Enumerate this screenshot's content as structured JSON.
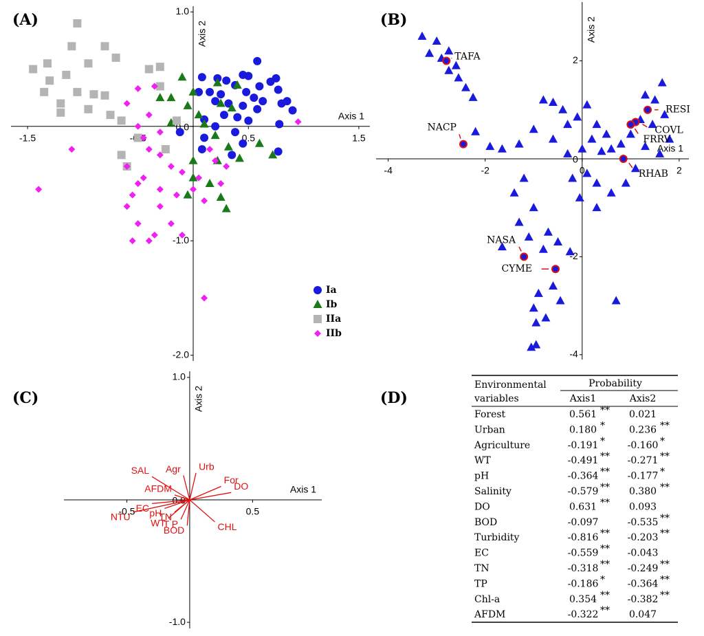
{
  "chart_data": [
    {
      "type": "scatter",
      "panel_label": "(A)",
      "xlabel": "Axis 1",
      "ylabel": "Axis 2",
      "xlim": [
        -1.65,
        1.6
      ],
      "ylim": [
        -2.05,
        1.05
      ],
      "xticks": [
        -1.5,
        -0.5,
        0.5,
        1.5
      ],
      "yticks": [
        {
          "value": 1,
          "label": "1.0"
        },
        {
          "value": 0,
          "label": "0.0"
        },
        {
          "value": -1,
          "label": "-1.0"
        },
        {
          "value": -2,
          "label": "-2.0"
        }
      ],
      "legend": "lower right",
      "series": [
        {
          "name": "Ia",
          "color": "#1a1adc",
          "marker": "circle",
          "x": [
            0.58,
            0.45,
            0.5,
            0.75,
            0.7,
            0.08,
            0.22,
            0.3,
            0.38,
            0.6,
            0.77,
            0.05,
            0.15,
            0.25,
            0.48,
            0.55,
            0.63,
            0.8,
            0.85,
            0.2,
            0.32,
            0.45,
            0.58,
            0.9,
            0.28,
            0.4,
            0.5,
            0.78,
            0.1,
            0.2,
            -0.12,
            0.38,
            0.1,
            0.45,
            0.08,
            0.35,
            0.77
          ],
          "y": [
            0.57,
            0.45,
            0.44,
            0.42,
            0.39,
            0.43,
            0.42,
            0.4,
            0.36,
            0.35,
            0.32,
            0.3,
            0.3,
            0.28,
            0.3,
            0.25,
            0.22,
            0.2,
            0.22,
            0.22,
            0.2,
            0.18,
            0.15,
            0.14,
            0.1,
            0.08,
            0.05,
            0.02,
            0.06,
            0,
            -0.05,
            -0.05,
            -0.1,
            -0.15,
            -0.2,
            -0.25,
            -0.22
          ]
        },
        {
          "name": "Ib",
          "color": "#1a7a1a",
          "marker": "triangle",
          "x": [
            -0.1,
            0.22,
            0.4,
            -0.2,
            0,
            -0.3,
            0.25,
            -0.05,
            0.35,
            0.05,
            -0.2,
            0.1,
            0.2,
            0.32,
            0.6,
            0.72,
            0,
            0.22,
            0.42,
            0,
            0.15,
            0.25,
            0.3,
            -0.05
          ],
          "y": [
            0.43,
            0.38,
            0.36,
            0.25,
            0.3,
            0.25,
            0.2,
            0.18,
            0.16,
            0.1,
            0.03,
            0.02,
            -0.08,
            -0.18,
            -0.15,
            -0.25,
            -0.3,
            -0.3,
            -0.28,
            -0.45,
            -0.5,
            -0.62,
            -0.72,
            -0.6
          ]
        },
        {
          "name": "IIa",
          "color": "#b4b4b4",
          "marker": "square",
          "x": [
            -1.05,
            -1.32,
            -1.1,
            -0.8,
            -1.45,
            -1.3,
            -0.95,
            -0.7,
            -1.15,
            -0.4,
            -0.3,
            -1.35,
            -1.05,
            -0.9,
            -0.8,
            -1.2,
            -0.95,
            -1.2,
            -0.75,
            -0.65,
            -0.3,
            -0.15,
            -0.5,
            -0.25,
            -0.65,
            -0.6
          ],
          "y": [
            0.9,
            0.55,
            0.7,
            0.7,
            0.5,
            0.4,
            0.55,
            0.6,
            0.45,
            0.5,
            0.52,
            0.3,
            0.3,
            0.28,
            0.27,
            0.2,
            0.15,
            0.12,
            0.1,
            0.05,
            0.35,
            0.05,
            -0.1,
            -0.2,
            -0.25,
            -0.35
          ]
        },
        {
          "name": "IIb",
          "color": "#f020f0",
          "marker": "diamond",
          "x": [
            0.95,
            -0.35,
            -0.5,
            -0.6,
            -0.4,
            -0.5,
            -0.45,
            -0.3,
            -1.1,
            -0.4,
            -0.3,
            -0.6,
            -0.2,
            -0.1,
            -0.45,
            0.05,
            0.2,
            0.3,
            -0.5,
            -0.3,
            0,
            -0.55,
            -0.15,
            0.1,
            -1.4,
            -0.6,
            -0.3,
            -0.5,
            -0.2,
            -0.35,
            -0.55,
            -0.4,
            -0.1,
            0.1,
            0.25,
            0.15
          ],
          "y": [
            0.04,
            0.35,
            0.33,
            0.2,
            0.1,
            0,
            -0.1,
            -0.05,
            -0.2,
            -0.2,
            -0.25,
            -0.35,
            -0.35,
            -0.4,
            -0.45,
            -0.45,
            -0.3,
            -0.35,
            -0.5,
            -0.55,
            -0.55,
            -0.6,
            -0.6,
            -0.65,
            -0.55,
            -0.7,
            -0.7,
            -0.85,
            -0.85,
            -0.95,
            -1,
            -1,
            -0.95,
            -1.5,
            -0.5,
            -0.2
          ]
        }
      ]
    },
    {
      "type": "scatter",
      "panel_label": "(B)",
      "xlabel": "Axis 1",
      "ylabel": "Axis 2",
      "xlim": [
        -4.25,
        2.2
      ],
      "ylim": [
        -4.1,
        3.2
      ],
      "xticks": [
        -4,
        -2,
        0,
        2
      ],
      "yticks": [
        2,
        0,
        -2,
        -4
      ],
      "series": [
        {
          "color": "#1a1adc",
          "marker": "triangle",
          "x": [
            -3.3,
            -3,
            -2.75,
            -3.15,
            -2.9,
            -2.6,
            -2.75,
            -2.55,
            -2.4,
            -2.25,
            -2.2,
            -1.9,
            -1.65,
            -1.3,
            -1,
            -0.8,
            -0.6,
            -0.4,
            -0.6,
            -0.3,
            -0.1,
            0.1,
            0.3,
            0.5,
            0.2,
            0,
            -0.3,
            0.4,
            0.6,
            0.8,
            1,
            1.2,
            1.5,
            1.65,
            1.3,
            1.45,
            1.7,
            1.8,
            1.6,
            1.3,
            1.1,
            0.9,
            0.6,
            0.3,
            0.1,
            -0.2,
            -0.05,
            0.3,
            -1.2,
            -1.4,
            -1,
            -1.3,
            -1.1,
            -0.7,
            -0.8,
            -0.5,
            -0.25,
            -0.6,
            -0.9,
            -0.45,
            -1,
            -0.95,
            -0.75,
            -1.05,
            -0.95,
            0.7,
            -1.65
          ],
          "y": [
            2.5,
            2.4,
            2.2,
            2.15,
            2.05,
            1.9,
            1.8,
            1.65,
            1.45,
            1.25,
            0.55,
            0.25,
            0.2,
            0.3,
            0.6,
            1.2,
            1.15,
            1,
            0.4,
            0.7,
            0.85,
            1.1,
            0.7,
            0.5,
            0.4,
            0.2,
            0.1,
            0.15,
            0.2,
            0.3,
            0.5,
            0.8,
            1.2,
            1.55,
            1.3,
            0.7,
            0.9,
            0.4,
            0.1,
            0.25,
            -0.2,
            -0.5,
            -0.7,
            -0.5,
            -0.3,
            -0.4,
            -0.8,
            -1,
            -0.4,
            -0.7,
            -1,
            -1.3,
            -1.6,
            -1.5,
            -1.85,
            -1.7,
            -1.9,
            -2.6,
            -2.75,
            -2.9,
            -3.05,
            -3.35,
            -3.25,
            -3.85,
            -3.8,
            -2.9,
            -1.8
          ]
        }
      ],
      "points": [
        {
          "label": "TAFA",
          "x": -2.8,
          "y": 2.0
        },
        {
          "label": "NACP",
          "x": -2.45,
          "y": 0.3
        },
        {
          "label": "RESI",
          "x": 1.35,
          "y": 1.0
        },
        {
          "label": "COVL",
          "x": 1.1,
          "y": 0.75
        },
        {
          "label": "FRRV",
          "x": 1.0,
          "y": 0.7
        },
        {
          "label": "RHAB",
          "x": 0.85,
          "y": 0.0
        },
        {
          "label": "NASA",
          "x": -1.2,
          "y": -2.0
        },
        {
          "label": "CYME",
          "x": -0.55,
          "y": -2.25
        }
      ]
    },
    {
      "type": "biplot",
      "panel_label": "(C)",
      "xlabel": "Axis 1",
      "ylabel": "Axis 2",
      "xlim": [
        -1.0,
        1.05
      ],
      "ylim": [
        -1.05,
        1.05
      ],
      "xticks": [
        -0.5,
        0.5
      ],
      "yticks": [
        {
          "value": 1,
          "label": "1.0"
        },
        {
          "value": 0,
          "label": "0.0"
        },
        {
          "value": -1,
          "label": "-1.0"
        }
      ],
      "color": "#e01010",
      "vectors": [
        {
          "label": "SAL",
          "x": -0.3,
          "y": 0.19
        },
        {
          "label": "Agr",
          "x": -0.05,
          "y": 0.2
        },
        {
          "label": "Urb",
          "x": 0.05,
          "y": 0.22
        },
        {
          "label": "For",
          "x": 0.25,
          "y": 0.11
        },
        {
          "label": "DO",
          "x": 0.33,
          "y": 0.06
        },
        {
          "label": "AFDM",
          "x": -0.12,
          "y": 0.04
        },
        {
          "label": "EC",
          "x": -0.3,
          "y": -0.03
        },
        {
          "label": "NTU",
          "x": -0.45,
          "y": -0.1
        },
        {
          "label": "pH",
          "x": -0.2,
          "y": -0.07
        },
        {
          "label": "TN",
          "x": -0.12,
          "y": -0.1
        },
        {
          "label": "WT",
          "x": -0.17,
          "y": -0.15
        },
        {
          "label": "T P",
          "x": -0.07,
          "y": -0.16
        },
        {
          "label": "BOD",
          "x": -0.02,
          "y": -0.21
        },
        {
          "label": "CHL",
          "x": 0.2,
          "y": -0.18
        }
      ]
    }
  ],
  "table": {
    "panel_label": "(D)",
    "header": {
      "variables": [
        "Environmental",
        "variables"
      ],
      "group": "Probability",
      "columns": [
        "Axis1",
        "Axis2"
      ]
    },
    "rows": [
      [
        "Forest",
        {
          "value": "0.561",
          "sig": "**"
        },
        {
          "value": "0.021"
        }
      ],
      [
        "Urban",
        {
          "value": "0.180",
          "sig": "*"
        },
        {
          "value": "0.236",
          "sig": "**"
        }
      ],
      [
        "Agriculture",
        {
          "value": "-0.191",
          "sig": "*"
        },
        {
          "value": "-0.160",
          "sig": "*"
        }
      ],
      [
        "WT",
        {
          "value": "-0.491",
          "sig": "**"
        },
        {
          "value": "-0.271",
          "sig": "**"
        }
      ],
      [
        "pH",
        {
          "value": "-0.364",
          "sig": "**"
        },
        {
          "value": "-0.177",
          "sig": "*"
        }
      ],
      [
        "Salinity",
        {
          "value": "-0.579",
          "sig": "**"
        },
        {
          "value": "0.380",
          "sig": "**"
        }
      ],
      [
        "DO",
        {
          "value": "0.631",
          "sig": "**"
        },
        {
          "value": "0.093"
        }
      ],
      [
        "BOD",
        {
          "value": "-0.097"
        },
        {
          "value": "-0.535",
          "sig": "**"
        }
      ],
      [
        "Turbidity",
        {
          "value": "-0.816",
          "sig": "**"
        },
        {
          "value": "-0.203",
          "sig": "**"
        }
      ],
      [
        "EC",
        {
          "value": "-0.559",
          "sig": "**"
        },
        {
          "value": "-0.043"
        }
      ],
      [
        "TN",
        {
          "value": "-0.318",
          "sig": "**"
        },
        {
          "value": "-0.249",
          "sig": "**"
        }
      ],
      [
        "TP",
        {
          "value": "-0.186",
          "sig": "*"
        },
        {
          "value": "-0.364",
          "sig": "**"
        }
      ],
      [
        "Chl-a",
        {
          "value": "0.354",
          "sig": "**"
        },
        {
          "value": "-0.382",
          "sig": "**"
        }
      ],
      [
        "AFDM",
        {
          "value": "-0.322",
          "sig": "**"
        },
        {
          "value": "0.047"
        }
      ]
    ]
  }
}
